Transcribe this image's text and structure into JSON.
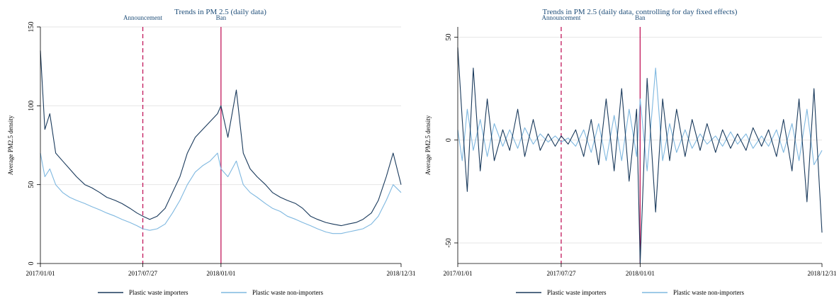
{
  "chart_data": [
    {
      "type": "line",
      "title": "Trends in PM 2.5 (daily data)",
      "ylabel": "Average PM2.5 density",
      "xlabel": "",
      "x_ticks": [
        "2017/01/01",
        "2017/07/27",
        "2018/01/01",
        "2018/12/31"
      ],
      "x_range": [
        "2017/01/01",
        "2018/12/31"
      ],
      "ylim": [
        0,
        150
      ],
      "y_ticks": [
        0,
        50,
        100,
        150
      ],
      "grid": "horizontal",
      "legend_position": "bottom",
      "events": [
        {
          "label": "Announcement",
          "date": "2017/07/27",
          "style": "dashed",
          "color": "#c2185b"
        },
        {
          "label": "Ban",
          "date": "2018/01/01",
          "style": "solid",
          "color": "#c2185b"
        }
      ],
      "series": [
        {
          "name": "Plastic waste importers",
          "color": "#1a3a5c",
          "x": [
            "2017/01/01",
            "2017/01/10",
            "2017/01/20",
            "2017/02/01",
            "2017/02/15",
            "2017/03/01",
            "2017/03/15",
            "2017/04/01",
            "2017/04/15",
            "2017/05/01",
            "2017/05/15",
            "2017/06/01",
            "2017/06/15",
            "2017/07/01",
            "2017/07/15",
            "2017/07/27",
            "2017/08/10",
            "2017/08/25",
            "2017/09/10",
            "2017/09/25",
            "2017/10/10",
            "2017/10/25",
            "2017/11/10",
            "2017/11/25",
            "2017/12/10",
            "2017/12/25",
            "2018/01/01",
            "2018/01/15",
            "2018/02/01",
            "2018/02/15",
            "2018/03/01",
            "2018/03/15",
            "2018/04/01",
            "2018/04/15",
            "2018/05/01",
            "2018/05/15",
            "2018/06/01",
            "2018/06/15",
            "2018/07/01",
            "2018/07/15",
            "2018/08/01",
            "2018/08/15",
            "2018/09/01",
            "2018/09/15",
            "2018/10/01",
            "2018/10/15",
            "2018/11/01",
            "2018/11/15",
            "2018/12/01",
            "2018/12/15",
            "2018/12/31"
          ],
          "y": [
            135,
            85,
            95,
            70,
            65,
            60,
            55,
            50,
            48,
            45,
            42,
            40,
            38,
            35,
            32,
            30,
            28,
            30,
            35,
            45,
            55,
            70,
            80,
            85,
            90,
            95,
            100,
            80,
            110,
            70,
            60,
            55,
            50,
            45,
            42,
            40,
            38,
            35,
            30,
            28,
            26,
            25,
            24,
            25,
            26,
            28,
            32,
            40,
            55,
            70,
            50
          ]
        },
        {
          "name": "Plastic waste non-importers",
          "color": "#7fb8e0",
          "x": [
            "2017/01/01",
            "2017/01/10",
            "2017/01/20",
            "2017/02/01",
            "2017/02/15",
            "2017/03/01",
            "2017/03/15",
            "2017/04/01",
            "2017/04/15",
            "2017/05/01",
            "2017/05/15",
            "2017/06/01",
            "2017/06/15",
            "2017/07/01",
            "2017/07/15",
            "2017/07/27",
            "2017/08/10",
            "2017/08/25",
            "2017/09/10",
            "2017/09/25",
            "2017/10/10",
            "2017/10/25",
            "2017/11/10",
            "2017/11/25",
            "2017/12/10",
            "2017/12/25",
            "2018/01/01",
            "2018/01/15",
            "2018/02/01",
            "2018/02/15",
            "2018/03/01",
            "2018/03/15",
            "2018/04/01",
            "2018/04/15",
            "2018/05/01",
            "2018/05/15",
            "2018/06/01",
            "2018/06/15",
            "2018/07/01",
            "2018/07/15",
            "2018/08/01",
            "2018/08/15",
            "2018/09/01",
            "2018/09/15",
            "2018/10/01",
            "2018/10/15",
            "2018/11/01",
            "2018/11/15",
            "2018/12/01",
            "2018/12/15",
            "2018/12/31"
          ],
          "y": [
            70,
            55,
            60,
            50,
            45,
            42,
            40,
            38,
            36,
            34,
            32,
            30,
            28,
            26,
            24,
            22,
            21,
            22,
            25,
            32,
            40,
            50,
            58,
            62,
            65,
            70,
            60,
            55,
            65,
            50,
            45,
            42,
            38,
            35,
            33,
            30,
            28,
            26,
            24,
            22,
            20,
            19,
            19,
            20,
            21,
            22,
            25,
            30,
            40,
            50,
            45
          ]
        }
      ]
    },
    {
      "type": "line",
      "title": "Trends in PM 2.5 (daily data, controlling for day fixed effects)",
      "ylabel": "Average PM2.5 density",
      "xlabel": "",
      "x_ticks": [
        "2017/01/01",
        "2017/07/27",
        "2018/01/01",
        "2018/12/31"
      ],
      "x_range": [
        "2017/01/01",
        "2018/12/31"
      ],
      "ylim": [
        -60,
        55
      ],
      "y_ticks": [
        -50,
        0,
        50
      ],
      "grid": "horizontal",
      "legend_position": "bottom",
      "events": [
        {
          "label": "Announcement",
          "date": "2017/07/27",
          "style": "dashed",
          "color": "#c2185b"
        },
        {
          "label": "Ban",
          "date": "2018/01/01",
          "style": "solid",
          "color": "#c2185b"
        }
      ],
      "series": [
        {
          "name": "Plastic waste importers",
          "color": "#1a3a5c",
          "x": [
            "2017/01/01",
            "2017/01/10",
            "2017/01/20",
            "2017/02/01",
            "2017/02/15",
            "2017/03/01",
            "2017/03/15",
            "2017/04/01",
            "2017/04/15",
            "2017/05/01",
            "2017/05/15",
            "2017/06/01",
            "2017/06/15",
            "2017/07/01",
            "2017/07/15",
            "2017/07/27",
            "2017/08/10",
            "2017/08/25",
            "2017/09/10",
            "2017/09/25",
            "2017/10/10",
            "2017/10/25",
            "2017/11/10",
            "2017/11/25",
            "2017/12/10",
            "2017/12/25",
            "2018/01/01",
            "2018/01/15",
            "2018/02/01",
            "2018/02/15",
            "2018/03/01",
            "2018/03/15",
            "2018/04/01",
            "2018/04/15",
            "2018/05/01",
            "2018/05/15",
            "2018/06/01",
            "2018/06/15",
            "2018/07/01",
            "2018/07/15",
            "2018/08/01",
            "2018/08/15",
            "2018/09/01",
            "2018/09/15",
            "2018/10/01",
            "2018/10/15",
            "2018/11/01",
            "2018/11/15",
            "2018/12/01",
            "2018/12/15",
            "2018/12/31"
          ],
          "y": [
            45,
            10,
            -25,
            35,
            -15,
            20,
            -10,
            5,
            -5,
            15,
            -8,
            10,
            -5,
            3,
            -3,
            2,
            -2,
            5,
            -8,
            10,
            -12,
            20,
            -15,
            25,
            -20,
            15,
            -60,
            30,
            -35,
            20,
            -10,
            15,
            -8,
            10,
            -5,
            8,
            -6,
            5,
            -4,
            3,
            -5,
            6,
            -3,
            5,
            -8,
            10,
            -15,
            20,
            -30,
            25,
            -45
          ]
        },
        {
          "name": "Plastic waste non-importers",
          "color": "#7fb8e0",
          "x": [
            "2017/01/01",
            "2017/01/10",
            "2017/01/20",
            "2017/02/01",
            "2017/02/15",
            "2017/03/01",
            "2017/03/15",
            "2017/04/01",
            "2017/04/15",
            "2017/05/01",
            "2017/05/15",
            "2017/06/01",
            "2017/06/15",
            "2017/07/01",
            "2017/07/15",
            "2017/07/27",
            "2017/08/10",
            "2017/08/25",
            "2017/09/10",
            "2017/09/25",
            "2017/10/10",
            "2017/10/25",
            "2017/11/10",
            "2017/11/25",
            "2017/12/10",
            "2017/12/25",
            "2018/01/01",
            "2018/01/15",
            "2018/02/01",
            "2018/02/15",
            "2018/03/01",
            "2018/03/15",
            "2018/04/01",
            "2018/04/15",
            "2018/05/01",
            "2018/05/15",
            "2018/06/01",
            "2018/06/15",
            "2018/07/01",
            "2018/07/15",
            "2018/08/01",
            "2018/08/15",
            "2018/09/01",
            "2018/09/15",
            "2018/10/01",
            "2018/10/15",
            "2018/11/01",
            "2018/11/15",
            "2018/12/01",
            "2018/12/15",
            "2018/12/31"
          ],
          "y": [
            5,
            -10,
            15,
            -5,
            10,
            -8,
            8,
            -3,
            5,
            -4,
            6,
            -2,
            3,
            -1,
            2,
            -1,
            1,
            -3,
            5,
            -6,
            8,
            -10,
            12,
            -10,
            15,
            -8,
            20,
            -15,
            35,
            -10,
            8,
            -6,
            5,
            -4,
            3,
            -2,
            2,
            -3,
            4,
            -2,
            3,
            -4,
            2,
            -3,
            5,
            -6,
            8,
            -10,
            15,
            -12,
            -5
          ]
        }
      ]
    }
  ]
}
